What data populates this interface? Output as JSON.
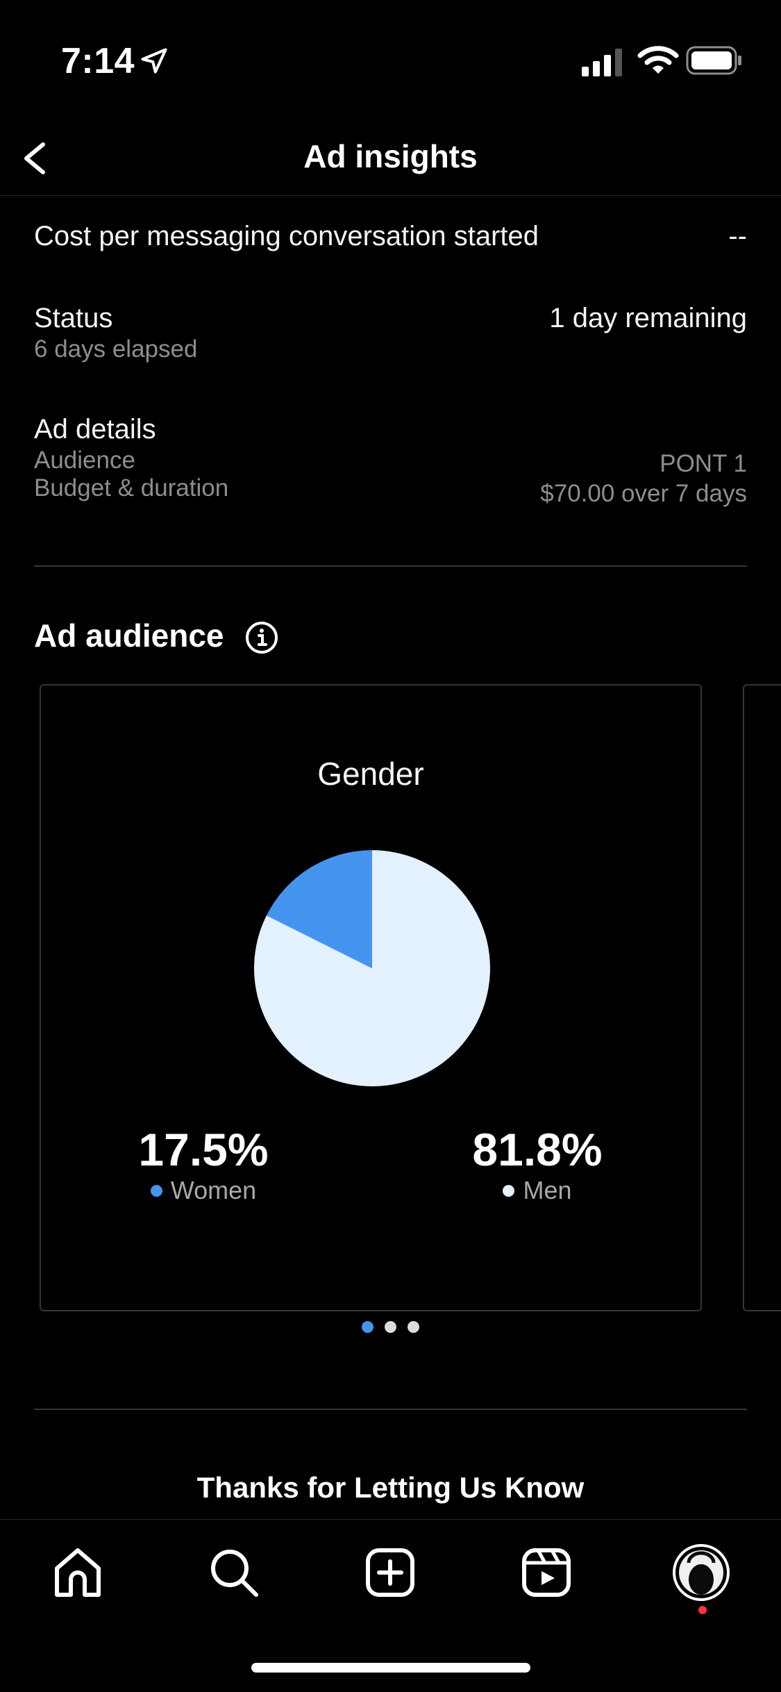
{
  "status_bar": {
    "time": "7:14"
  },
  "nav": {
    "title": "Ad insights"
  },
  "metrics": {
    "cost_label": "Cost per messaging conversation started",
    "cost_value": "--",
    "status_label": "Status",
    "status_sub": "6 days elapsed",
    "status_value": "1 day remaining",
    "details_label": "Ad details",
    "audience_label": "Audience",
    "audience_value": "PONT 1",
    "budget_label": "Budget & duration",
    "budget_value": "$70.00 over 7 days"
  },
  "audience": {
    "title": "Ad audience",
    "card_title": "Gender",
    "women_value": "17.5%",
    "women_label": "Women",
    "men_value": "81.8%",
    "men_label": "Men",
    "pager_count": 3,
    "pager_active": 0
  },
  "chart_data": {
    "type": "pie",
    "title": "Gender",
    "categories": [
      "Women",
      "Men"
    ],
    "values": [
      17.5,
      81.8
    ],
    "colors": [
      "#4595ef",
      "#e3f0fd"
    ]
  },
  "footer": {
    "thanks": "Thanks for Letting Us Know"
  },
  "tabs": [
    "home-icon",
    "search-icon",
    "create-icon",
    "reels-icon",
    "profile-avatar"
  ],
  "colors": {
    "accent": "#4595ef",
    "men": "#e3f0fd",
    "background": "#000000"
  }
}
